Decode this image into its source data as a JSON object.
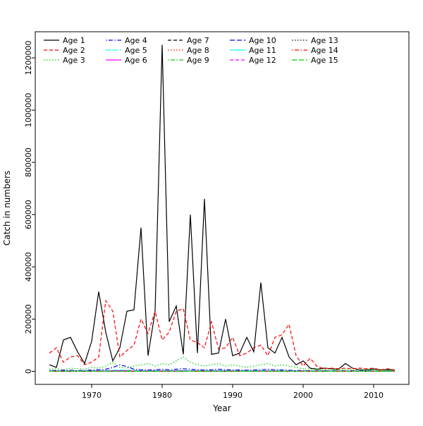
{
  "chart_data": {
    "type": "line",
    "title": "",
    "xlabel": "Year",
    "ylabel": "Catch in numbers",
    "xlim": [
      1962,
      2015
    ],
    "ylim": [
      -50000,
      1300000
    ],
    "x_ticks": [
      1970,
      1980,
      1990,
      2000,
      2010
    ],
    "y_ticks": [
      0,
      200000,
      400000,
      600000,
      800000,
      1000000,
      1200000
    ],
    "grid": false,
    "legend_position": "top-left-inside",
    "legend_columns": 5,
    "x": [
      1964,
      1965,
      1966,
      1967,
      1968,
      1969,
      1970,
      1971,
      1972,
      1973,
      1974,
      1975,
      1976,
      1977,
      1978,
      1979,
      1980,
      1981,
      1982,
      1983,
      1984,
      1985,
      1986,
      1987,
      1988,
      1989,
      1990,
      1991,
      1992,
      1993,
      1994,
      1995,
      1996,
      1997,
      1998,
      1999,
      2000,
      2001,
      2002,
      2003,
      2004,
      2005,
      2006,
      2007,
      2008,
      2009,
      2010,
      2011,
      2012,
      2013
    ],
    "series": [
      {
        "name": "Age 1",
        "color": "#000000",
        "linetype": "solid",
        "values": [
          25000,
          15000,
          120000,
          130000,
          75000,
          30000,
          115000,
          305000,
          150000,
          40000,
          90000,
          230000,
          235000,
          550000,
          60000,
          230000,
          1250000,
          190000,
          250000,
          65000,
          600000,
          70000,
          660000,
          65000,
          70000,
          200000,
          60000,
          70000,
          130000,
          75000,
          340000,
          90000,
          70000,
          130000,
          55000,
          25000,
          40000,
          12000,
          8000,
          12000,
          10000,
          8000,
          30000,
          12000,
          6000,
          6000,
          9000,
          6000,
          7000,
          5000
        ]
      },
      {
        "name": "Age 2",
        "color": "#FF0000",
        "linetype": "dashed",
        "values": [
          70000,
          90000,
          35000,
          55000,
          60000,
          25000,
          35000,
          55000,
          270000,
          230000,
          55000,
          80000,
          100000,
          200000,
          145000,
          230000,
          120000,
          150000,
          230000,
          240000,
          120000,
          110000,
          90000,
          190000,
          85000,
          90000,
          130000,
          60000,
          70000,
          90000,
          100000,
          60000,
          130000,
          140000,
          180000,
          60000,
          20000,
          50000,
          18000,
          10000,
          12000,
          10000,
          12000,
          10000,
          12000,
          10000,
          12000,
          6000,
          10000,
          5000
        ]
      },
      {
        "name": "Age 3",
        "color": "#00CD00",
        "linetype": "dotted",
        "values": [
          8000,
          10000,
          6000,
          12000,
          10000,
          8000,
          15000,
          12000,
          20000,
          35000,
          15000,
          12000,
          20000,
          25000,
          30000,
          20000,
          30000,
          25000,
          40000,
          55000,
          35000,
          25000,
          20000,
          25000,
          30000,
          20000,
          25000,
          20000,
          15000,
          20000,
          25000,
          30000,
          20000,
          25000,
          20000,
          15000,
          10000,
          8000,
          6000,
          5000,
          6000,
          5000,
          8000,
          6000,
          5000,
          5000,
          6000,
          4000,
          5000,
          3000
        ]
      },
      {
        "name": "Age 4",
        "color": "#0000FF",
        "linetype": "dotdash",
        "values": [
          3000,
          3000,
          4000,
          4000,
          3000,
          3000,
          5000,
          6000,
          8000,
          15000,
          25000,
          18000,
          8000,
          6000,
          5000,
          6000,
          8000,
          6000,
          8000,
          10000,
          8000,
          6000,
          5000,
          6000,
          8000,
          6000,
          5000,
          5000,
          4000,
          5000,
          6000,
          8000,
          6000,
          5000,
          4000,
          3000,
          3000,
          2000,
          2000,
          2000,
          2000,
          2000,
          2000,
          2000,
          2000,
          2000,
          2000,
          1000,
          2000,
          1000
        ]
      },
      {
        "name": "Age 5",
        "color": "#00FFFF",
        "linetype": "longdash",
        "values": [
          1000,
          1500,
          1000,
          2000,
          1500,
          1000,
          2000,
          2500,
          3000,
          4000,
          5000,
          4000,
          3000,
          2500,
          2000,
          2500,
          3000,
          2500,
          3000,
          3500,
          3000,
          2500,
          2000,
          2500,
          3000,
          2500,
          2000,
          2000,
          1500,
          2000,
          2500,
          3000,
          2500,
          2000,
          1500,
          1000,
          1000,
          800,
          800,
          800,
          700,
          700,
          800,
          700,
          600,
          600,
          700,
          500,
          600,
          500
        ]
      },
      {
        "name": "Age 6",
        "color": "#FF00FF",
        "linetype": "solid",
        "values": [
          500,
          700,
          500,
          1000,
          800,
          500,
          1000,
          1200,
          1500,
          2000,
          2500,
          2000,
          1500,
          1200,
          1000,
          1200,
          1500,
          1200,
          1500,
          1800,
          1500,
          1200,
          1000,
          1200,
          1500,
          1200,
          1000,
          1000,
          800,
          1000,
          1200,
          1500,
          1200,
          1000,
          800,
          500,
          500,
          400,
          400,
          400,
          350,
          350,
          400,
          350,
          300,
          300,
          350,
          250,
          300,
          250
        ]
      },
      {
        "name": "Age 7",
        "color": "#000000",
        "linetype": "dashed",
        "values": [
          800,
          800,
          800,
          800,
          800,
          800,
          800,
          800,
          800,
          800,
          800,
          800,
          800,
          800,
          800,
          800,
          800,
          800,
          800,
          800,
          800,
          800,
          800,
          800,
          800,
          800,
          800,
          800,
          800,
          800,
          800,
          800,
          800,
          800,
          800,
          800,
          800,
          800,
          800,
          800,
          800,
          800,
          800,
          800,
          800,
          800,
          800,
          800,
          800,
          800
        ]
      },
      {
        "name": "Age 8",
        "color": "#FF0000",
        "linetype": "dotted",
        "values": [
          600,
          600,
          600,
          600,
          600,
          600,
          600,
          600,
          600,
          600,
          600,
          600,
          600,
          600,
          600,
          600,
          600,
          600,
          600,
          600,
          600,
          600,
          600,
          600,
          600,
          600,
          600,
          600,
          600,
          600,
          600,
          600,
          600,
          600,
          600,
          600,
          600,
          600,
          600,
          600,
          600,
          600,
          600,
          600,
          600,
          600,
          600,
          600,
          600,
          600
        ]
      },
      {
        "name": "Age 9",
        "color": "#00CD00",
        "linetype": "dotdash",
        "values": [
          500,
          500,
          500,
          500,
          500,
          500,
          500,
          500,
          500,
          500,
          500,
          500,
          500,
          500,
          500,
          500,
          500,
          500,
          500,
          500,
          500,
          500,
          500,
          500,
          500,
          500,
          500,
          500,
          500,
          500,
          500,
          500,
          500,
          500,
          500,
          500,
          500,
          500,
          500,
          500,
          500,
          500,
          500,
          500,
          500,
          500,
          500,
          500,
          500,
          500
        ]
      },
      {
        "name": "Age 10",
        "color": "#0000FF",
        "linetype": "longdash",
        "values": [
          400,
          400,
          400,
          400,
          400,
          400,
          400,
          400,
          400,
          400,
          400,
          400,
          400,
          400,
          400,
          400,
          400,
          400,
          400,
          400,
          400,
          400,
          400,
          400,
          400,
          400,
          400,
          400,
          400,
          400,
          400,
          400,
          400,
          400,
          400,
          400,
          400,
          400,
          400,
          400,
          400,
          400,
          400,
          400,
          400,
          400,
          400,
          400,
          400,
          400
        ]
      },
      {
        "name": "Age 11",
        "color": "#00FFFF",
        "linetype": "solid",
        "values": [
          300,
          300,
          300,
          300,
          300,
          300,
          300,
          300,
          300,
          300,
          300,
          300,
          300,
          300,
          300,
          300,
          300,
          300,
          300,
          300,
          300,
          300,
          300,
          300,
          300,
          300,
          300,
          300,
          300,
          300,
          300,
          300,
          300,
          300,
          300,
          300,
          300,
          300,
          300,
          300,
          300,
          300,
          300,
          300,
          300,
          300,
          300,
          300,
          300,
          300
        ]
      },
      {
        "name": "Age 12",
        "color": "#FF00FF",
        "linetype": "dashed",
        "values": [
          250,
          250,
          250,
          250,
          250,
          250,
          250,
          250,
          250,
          250,
          250,
          250,
          250,
          250,
          250,
          250,
          250,
          250,
          250,
          250,
          250,
          250,
          250,
          250,
          250,
          250,
          250,
          250,
          250,
          250,
          250,
          250,
          250,
          250,
          250,
          250,
          250,
          250,
          250,
          250,
          250,
          250,
          250,
          250,
          250,
          250,
          250,
          250,
          250,
          250
        ]
      },
      {
        "name": "Age 13",
        "color": "#000000",
        "linetype": "dotted",
        "values": [
          200,
          200,
          200,
          200,
          200,
          200,
          200,
          200,
          200,
          200,
          200,
          200,
          200,
          200,
          200,
          200,
          200,
          200,
          200,
          200,
          200,
          200,
          200,
          200,
          200,
          200,
          200,
          200,
          200,
          200,
          200,
          200,
          200,
          200,
          200,
          200,
          200,
          200,
          200,
          200,
          200,
          200,
          200,
          200,
          200,
          200,
          200,
          200,
          200,
          200
        ]
      },
      {
        "name": "Age 14",
        "color": "#FF0000",
        "linetype": "dotdash",
        "values": [
          150,
          150,
          150,
          150,
          150,
          150,
          150,
          150,
          150,
          150,
          150,
          150,
          150,
          150,
          150,
          150,
          150,
          150,
          150,
          150,
          150,
          150,
          150,
          150,
          150,
          150,
          150,
          150,
          150,
          150,
          150,
          150,
          150,
          150,
          150,
          150,
          150,
          150,
          150,
          150,
          150,
          150,
          150,
          150,
          150,
          150,
          150,
          150,
          150,
          150
        ]
      },
      {
        "name": "Age 15",
        "color": "#00CD00",
        "linetype": "longdash",
        "values": [
          100,
          100,
          100,
          100,
          100,
          100,
          100,
          100,
          100,
          100,
          100,
          100,
          100,
          100,
          100,
          100,
          100,
          100,
          100,
          100,
          100,
          100,
          100,
          100,
          100,
          100,
          100,
          100,
          100,
          100,
          100,
          100,
          100,
          100,
          100,
          100,
          100,
          100,
          100,
          100,
          100,
          100,
          100,
          100,
          100,
          100,
          100,
          100,
          100,
          100
        ]
      }
    ]
  }
}
